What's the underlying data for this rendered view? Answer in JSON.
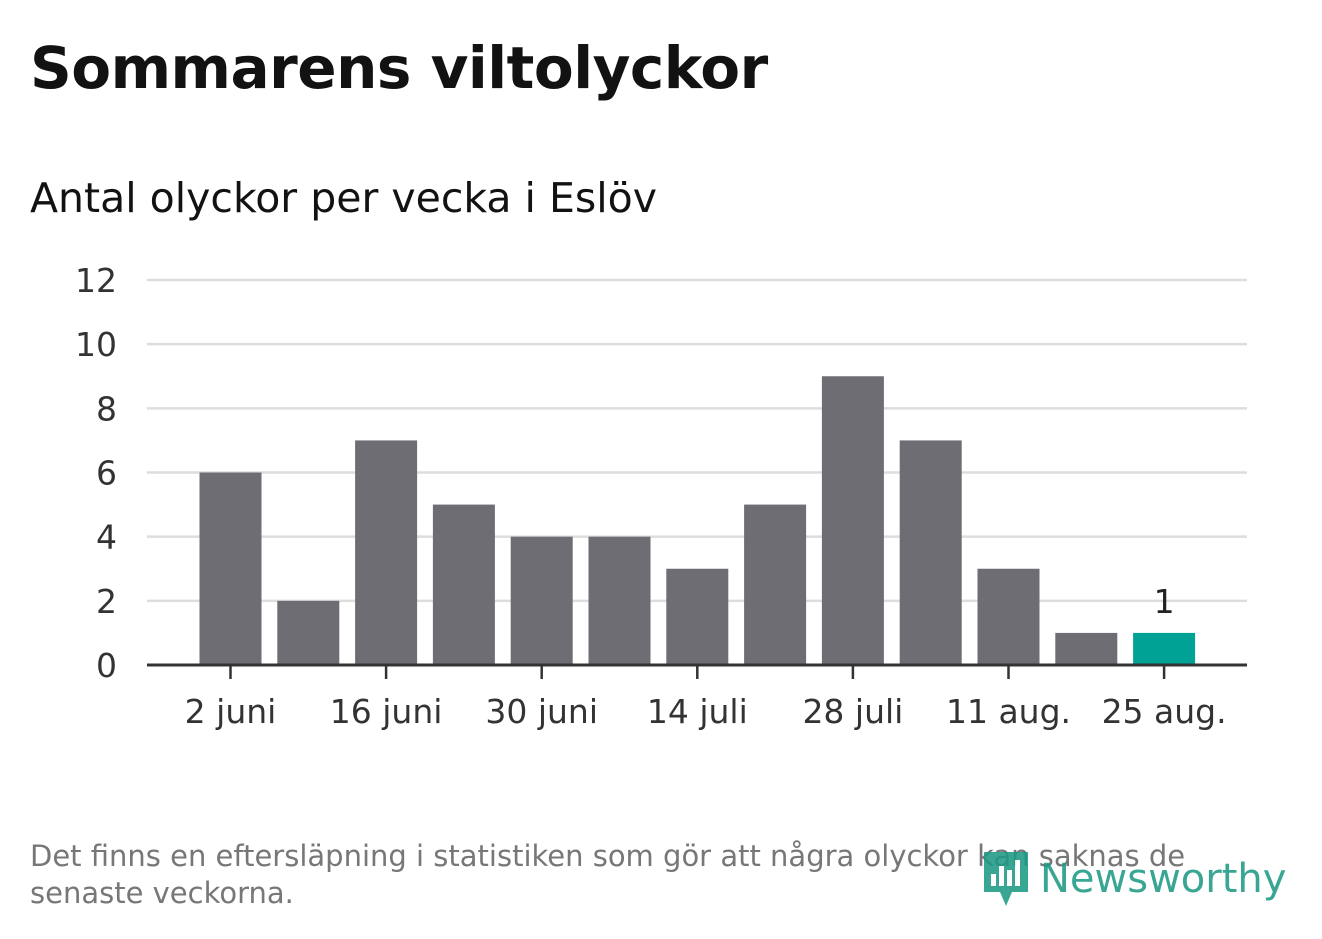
{
  "header": {
    "title": "Sommarens viltolyckor",
    "subtitle": "Antal olyckor per vecka i Eslöv"
  },
  "chart_data": {
    "type": "bar",
    "title": "Sommarens viltolyckor",
    "subtitle": "Antal olyckor per vecka i Eslöv",
    "xlabel": "",
    "ylabel": "",
    "x_tick_labels": [
      "2 juni",
      "16 juni",
      "30 juni",
      "14 juli",
      "28 juli",
      "11 aug.",
      "25 aug."
    ],
    "y_ticks": [
      0,
      2,
      4,
      6,
      8,
      10,
      12
    ],
    "ylim": [
      0,
      12
    ],
    "grid": true,
    "values": [
      6,
      2,
      7,
      5,
      4,
      4,
      3,
      5,
      9,
      7,
      3,
      1,
      1
    ],
    "highlight_index": 12,
    "data_labels": [
      {
        "index": 12,
        "text": "1"
      }
    ],
    "colors": {
      "bar": "#6e6d73",
      "highlight": "#00a295",
      "grid": "#dddddd",
      "axis": "#333333"
    }
  },
  "footer": {
    "note": "Det finns en eftersläpning i statistiken som gör att några olyckor kan saknas de senaste veckorna.",
    "brand": "Newsworthy"
  }
}
